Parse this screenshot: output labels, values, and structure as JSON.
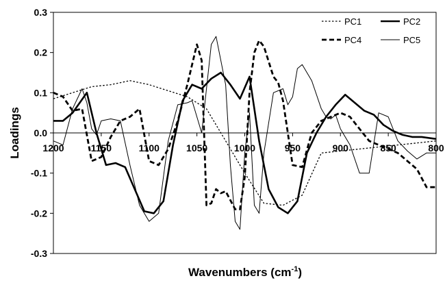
{
  "chart_data": {
    "type": "line",
    "title": "",
    "xlabel": "Wavenumbers (cm",
    "xlabel_superscript": "-1",
    "xlabel_suffix": ")",
    "ylabel": "Loadings",
    "xlim": [
      1200,
      800
    ],
    "ylim": [
      -0.3,
      0.3
    ],
    "x_ticks": [
      1200,
      1150,
      1100,
      1050,
      1000,
      950,
      900,
      850,
      800
    ],
    "x_tick_labels": [
      "1200",
      "1150",
      "1100",
      "1050",
      "1000",
      "950",
      "900",
      "850",
      "800"
    ],
    "y_ticks": [
      -0.3,
      -0.2,
      -0.1,
      0.0,
      0.1,
      0.2,
      0.3
    ],
    "y_tick_labels": [
      "-0.3",
      "-0.2",
      "-0.1",
      "0.0",
      "0.1",
      "0.2",
      "0.3"
    ],
    "grid": false,
    "legend_position": "top-right",
    "series": [
      {
        "name": "PC1",
        "style": "dotted-thin",
        "x": [
          1200,
          1180,
          1160,
          1140,
          1120,
          1100,
          1080,
          1060,
          1040,
          1020,
          1000,
          980,
          960,
          940,
          920,
          900,
          880,
          860,
          840,
          820,
          800
        ],
        "y": [
          0.085,
          0.1,
          0.115,
          0.12,
          0.13,
          0.12,
          0.105,
          0.09,
          0.06,
          -0.02,
          -0.1,
          -0.175,
          -0.18,
          -0.155,
          -0.05,
          -0.045,
          -0.04,
          -0.035,
          -0.03,
          -0.025,
          -0.02
        ]
      },
      {
        "name": "PC2",
        "style": "solid-thick",
        "x": [
          1200,
          1190,
          1180,
          1165,
          1155,
          1145,
          1135,
          1125,
          1115,
          1105,
          1095,
          1085,
          1075,
          1065,
          1055,
          1045,
          1035,
          1025,
          1015,
          1005,
          995,
          985,
          975,
          965,
          955,
          945,
          935,
          925,
          915,
          905,
          895,
          885,
          875,
          865,
          855,
          845,
          835,
          825,
          815,
          800
        ],
        "y": [
          0.03,
          0.03,
          0.05,
          0.1,
          0.0,
          -0.08,
          -0.075,
          -0.085,
          -0.14,
          -0.195,
          -0.2,
          -0.17,
          -0.03,
          0.08,
          0.12,
          0.11,
          0.135,
          0.15,
          0.12,
          0.085,
          0.14,
          -0.02,
          -0.14,
          -0.185,
          -0.2,
          -0.17,
          -0.05,
          0.0,
          0.04,
          0.07,
          0.095,
          0.075,
          0.055,
          0.045,
          0.02,
          0.005,
          -0.005,
          -0.01,
          -0.01,
          -0.015
        ]
      },
      {
        "name": "PC4",
        "style": "dashed-thick",
        "x": [
          1200,
          1190,
          1180,
          1170,
          1160,
          1150,
          1140,
          1130,
          1120,
          1110,
          1100,
          1090,
          1080,
          1070,
          1060,
          1050,
          1045,
          1040,
          1035,
          1030,
          1025,
          1020,
          1010,
          1005,
          1000,
          995,
          990,
          985,
          980,
          970,
          965,
          960,
          950,
          940,
          930,
          920,
          900,
          890,
          870,
          860,
          840,
          820,
          810,
          800
        ],
        "y": [
          0.1,
          0.09,
          0.055,
          0.06,
          -0.07,
          -0.06,
          -0.01,
          0.03,
          0.04,
          0.06,
          -0.07,
          -0.08,
          -0.04,
          0.03,
          0.12,
          0.22,
          0.18,
          -0.18,
          -0.175,
          -0.14,
          -0.15,
          -0.145,
          -0.19,
          -0.19,
          -0.11,
          0.1,
          0.2,
          0.23,
          0.215,
          0.14,
          0.125,
          0.08,
          -0.08,
          -0.085,
          0.0,
          0.03,
          0.05,
          0.04,
          -0.02,
          -0.03,
          -0.05,
          -0.09,
          -0.135,
          -0.135
        ]
      },
      {
        "name": "PC5",
        "style": "solid-thin",
        "x": [
          1200,
          1190,
          1180,
          1170,
          1165,
          1160,
          1155,
          1150,
          1140,
          1130,
          1120,
          1110,
          1100,
          1090,
          1080,
          1070,
          1060,
          1055,
          1050,
          1045,
          1040,
          1035,
          1030,
          1020,
          1015,
          1010,
          1005,
          1000,
          995,
          990,
          985,
          980,
          970,
          960,
          955,
          950,
          945,
          940,
          930,
          920,
          915,
          910,
          905,
          900,
          890,
          880,
          870,
          860,
          850,
          840,
          830,
          820,
          810,
          800
        ],
        "y": [
          -0.02,
          -0.03,
          0.06,
          0.11,
          0.075,
          0.01,
          -0.005,
          0.03,
          0.035,
          0.03,
          -0.08,
          -0.18,
          -0.22,
          -0.2,
          -0.02,
          0.07,
          0.075,
          0.08,
          0.04,
          0.0,
          0.11,
          0.22,
          0.24,
          0.12,
          -0.08,
          -0.22,
          -0.24,
          -0.05,
          0.05,
          -0.18,
          -0.2,
          -0.05,
          0.1,
          0.11,
          0.07,
          0.09,
          0.16,
          0.17,
          0.13,
          0.06,
          0.04,
          0.035,
          0.045,
          0.01,
          -0.03,
          -0.1,
          -0.1,
          0.05,
          0.04,
          -0.02,
          -0.045,
          -0.065,
          -0.05,
          -0.05
        ]
      }
    ]
  }
}
